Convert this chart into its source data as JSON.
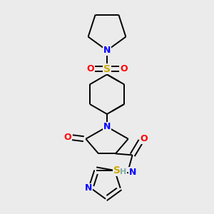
{
  "bg_color": "#ebebeb",
  "bond_color": "#000000",
  "bond_width": 1.4,
  "atom_colors": {
    "N": "#0000ff",
    "O": "#ff0000",
    "S_sulfonyl": "#ccaa00",
    "S_thiazole": "#ccaa00",
    "H": "#7faaaa",
    "C": "#000000"
  },
  "font_size": 9,
  "fig_size": [
    3.0,
    3.0
  ],
  "dpi": 100
}
